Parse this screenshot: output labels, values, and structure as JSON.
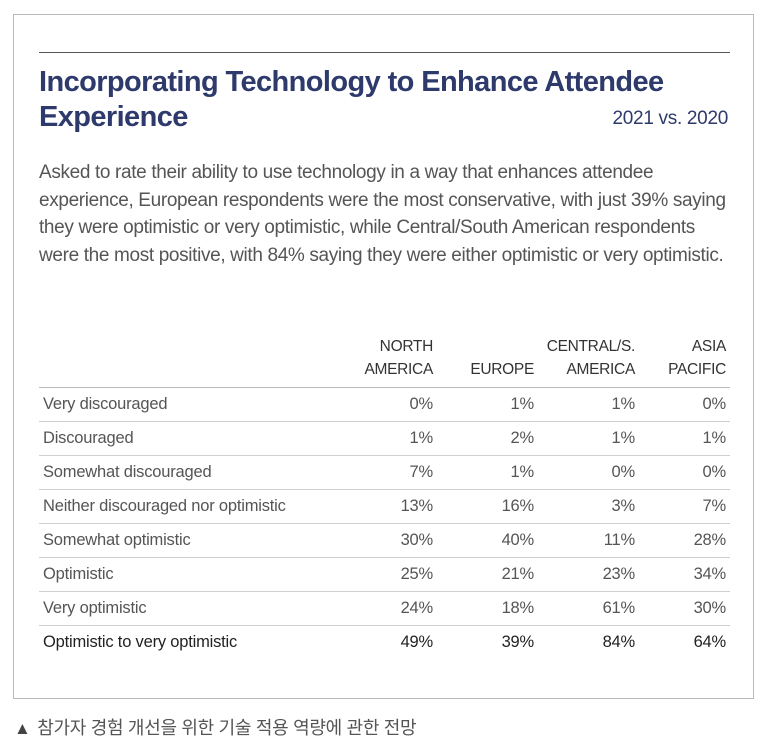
{
  "title": "Incorporating Technology to Enhance Attendee Experience",
  "subtitle": "2021 vs. 2020",
  "intro": "Asked to rate their ability to use technology in a way that enhances attendee experience, European respondents were the most conservative, with just 39% saying they were optimistic or very optimistic, while Central/South American respondents were the most positive, with 84% saying they were either optimistic or very optimistic.",
  "table": {
    "columns": [
      {
        "line1": "NORTH",
        "line2": "AMERICA"
      },
      {
        "line1": "",
        "line2": "EUROPE"
      },
      {
        "line1": "CENTRAL/S.",
        "line2": "AMERICA"
      },
      {
        "line1": "ASIA",
        "line2": "PACIFIC"
      }
    ],
    "rows": [
      {
        "label": "Very discouraged",
        "values": [
          "0%",
          "1%",
          "1%",
          "0%"
        ]
      },
      {
        "label": "Discouraged",
        "values": [
          "1%",
          "2%",
          "1%",
          "1%"
        ]
      },
      {
        "label": "Somewhat discouraged",
        "values": [
          "7%",
          "1%",
          "0%",
          "0%"
        ]
      },
      {
        "label": "Neither discouraged nor optimistic",
        "values": [
          "13%",
          "16%",
          "3%",
          "7%"
        ]
      },
      {
        "label": "Somewhat optimistic",
        "values": [
          "30%",
          "40%",
          "11%",
          "28%"
        ]
      },
      {
        "label": "Optimistic",
        "values": [
          "25%",
          "21%",
          "23%",
          "34%"
        ]
      },
      {
        "label": "Very optimistic",
        "values": [
          "24%",
          "18%",
          "61%",
          "30%"
        ]
      },
      {
        "label": "Optimistic to very optimistic",
        "values": [
          "49%",
          "39%",
          "84%",
          "64%"
        ]
      }
    ]
  },
  "caption": {
    "marker": "▲",
    "text": "참가자 경험 개선을 위한 기술 적용 역량에 관한 전망"
  }
}
